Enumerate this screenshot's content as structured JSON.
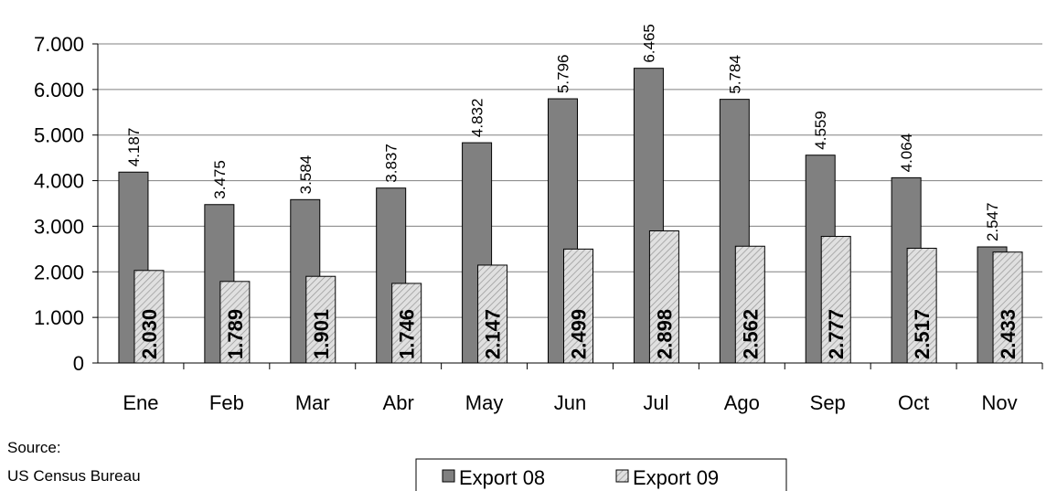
{
  "chart_data": {
    "type": "bar",
    "categories": [
      "Ene",
      "Feb",
      "Mar",
      "Abr",
      "May",
      "Jun",
      "Jul",
      "Ago",
      "Sep",
      "Oct",
      "Nov"
    ],
    "series": [
      {
        "name": "Export 08",
        "color": "#808080",
        "pattern": "solid",
        "values": [
          4187,
          3475,
          3584,
          3837,
          4832,
          5796,
          6465,
          5784,
          4559,
          4064,
          2547
        ],
        "value_labels": [
          "4.187",
          "3.475",
          "3.584",
          "3.837",
          "4.832",
          "5.796",
          "6.465",
          "5.784",
          "4.559",
          "4.064",
          "2.547"
        ]
      },
      {
        "name": "Export 09",
        "color": "#e0e0e0",
        "pattern": "hatch",
        "values": [
          2030,
          1789,
          1901,
          1746,
          2147,
          2499,
          2898,
          2562,
          2777,
          2517,
          2433
        ],
        "value_labels": [
          "2.030",
          "1.789",
          "1.901",
          "1.746",
          "2.147",
          "2.499",
          "2.898",
          "2.562",
          "2.777",
          "2.517",
          "2.433"
        ]
      }
    ],
    "ylim": [
      0,
      7000
    ],
    "yticks": [
      0,
      {
        "value": 1000,
        "label": "1.000"
      },
      {
        "value": 2000,
        "label": "2.000"
      },
      {
        "value": 3000,
        "label": "3.000"
      },
      {
        "value": 4000,
        "label": "4.000"
      },
      {
        "value": 5000,
        "label": "5.000"
      },
      {
        "value": 6000,
        "label": "6.000"
      },
      {
        "value": 7000,
        "label": "7.000"
      }
    ],
    "grid": true,
    "source": [
      "Source:",
      "US Census Bureau"
    ]
  }
}
